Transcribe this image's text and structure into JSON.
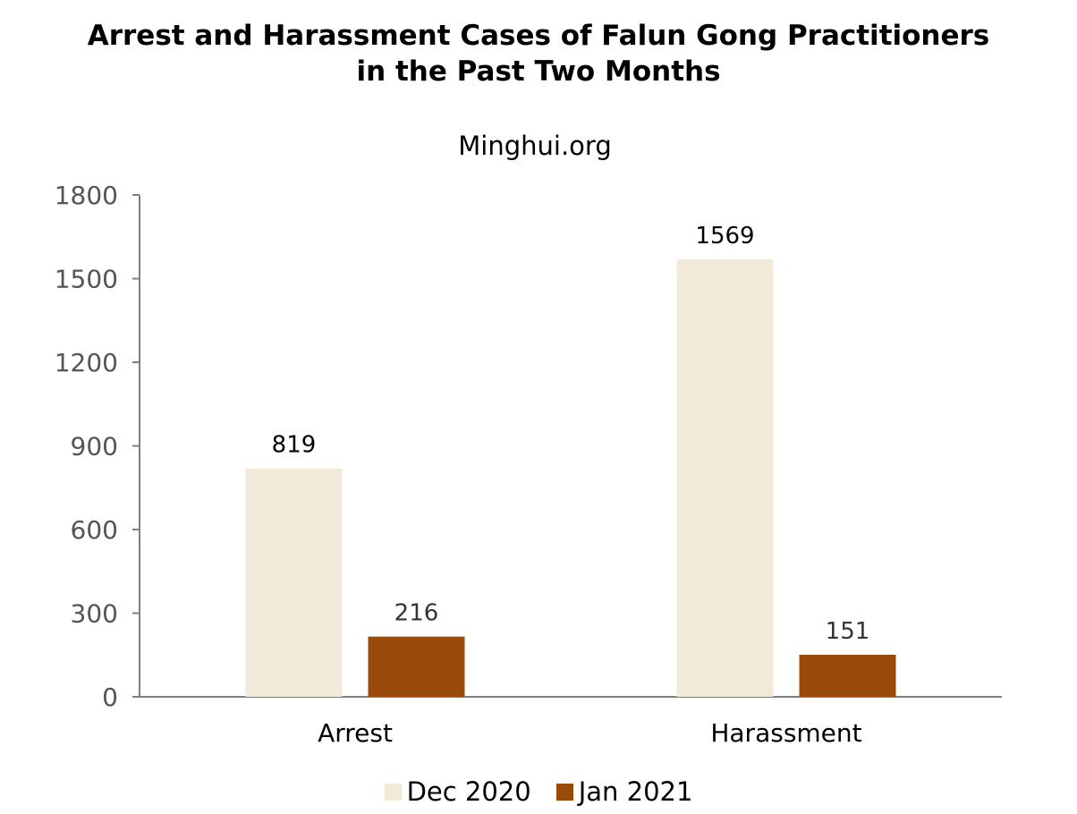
{
  "chart_data": {
    "type": "bar",
    "title_line1": "Arrest and Harassment Cases of Falun Gong Practitioners",
    "title_line2": "in the Past Two Months",
    "subtitle": "Minghui.org",
    "categories": [
      "Arrest",
      "Harassment"
    ],
    "series": [
      {
        "name": "Dec 2020",
        "values": [
          819,
          1569
        ],
        "color": "#f2ead9",
        "label_color": "#000000"
      },
      {
        "name": "Jan 2021",
        "values": [
          216,
          151
        ],
        "color": "#9a4a0a",
        "label_color": "#333333"
      }
    ],
    "yticks": [
      "0",
      "300",
      "600",
      "900",
      "1200",
      "1500",
      "1800"
    ],
    "ylim": [
      0,
      1800
    ],
    "xlabel": "",
    "ylabel": "",
    "grid": false,
    "legend_position": "bottom",
    "axis_color": "#7f7f7f"
  }
}
